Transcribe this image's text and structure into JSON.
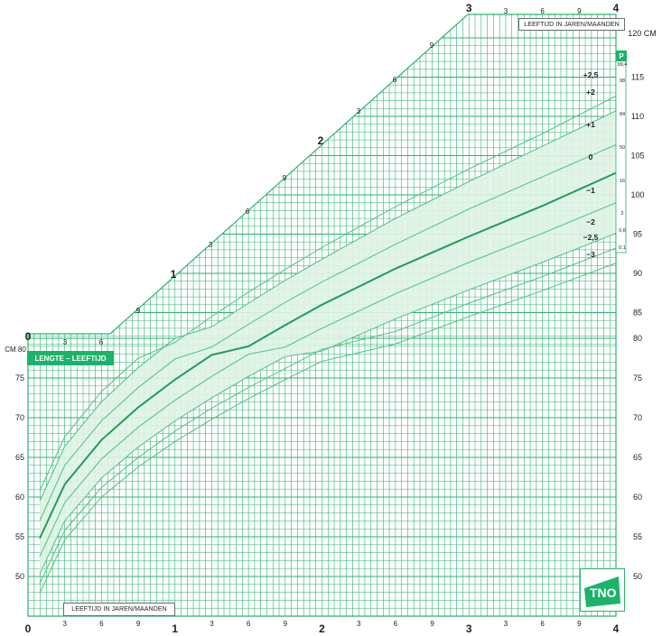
{
  "colors": {
    "grid": "#2bb36f",
    "band": "#dff3e6",
    "median": "#1f9d5a",
    "sd_line": "#58c588",
    "label": "#1f1f1f",
    "accent": "#1bb36a"
  },
  "chart": {
    "title": "LENGTE – LEEFTIJD",
    "age_box_top": "LEEFTIJD IN JAREN/MAANDEN",
    "age_box_bottom": "LEEFTIJD IN JAREN/MAANDEN",
    "p_label": "P",
    "left_unit_label": "CM 80",
    "right_unit_label": "120 CM",
    "logo_text": "TNO"
  },
  "chart_data": {
    "type": "line",
    "xlabel": "LEEFTIJD IN JAREN/MAANDEN",
    "ylabel": "CM",
    "x_range_years": [
      0,
      4
    ],
    "ylim_lower": [
      45,
      80
    ],
    "ylim_upper": [
      80,
      120
    ],
    "bottom_year_labels": [
      "0",
      "1",
      "2",
      "3",
      "4"
    ],
    "bottom_month_labels": [
      "3",
      "6",
      "9"
    ],
    "top_year_labels": [
      "3",
      "4"
    ],
    "diagonal_year_labels": [
      "0",
      "1",
      "2",
      "3"
    ],
    "diagonal_month_labels": [
      "3",
      "6",
      "9"
    ],
    "left_ticks": [
      "50",
      "55",
      "60",
      "65",
      "70",
      "75"
    ],
    "right_ticks": [
      "50",
      "55",
      "60",
      "65",
      "70",
      "75",
      "80",
      "85",
      "90",
      "95",
      "100",
      "105",
      "110",
      "115"
    ],
    "sd_labels": [
      "+2,5",
      "+2",
      "+1",
      "0",
      "−1",
      "−2",
      "−2,5",
      "−3"
    ],
    "percentiles": [
      "99,4",
      "98",
      "84",
      "50",
      "16",
      "2",
      "0,6",
      "0,1"
    ],
    "band": {
      "from_sd": "−2",
      "to_sd": "+2"
    },
    "series": [
      {
        "name": "+2,5",
        "x": [
          0.08,
          0.25,
          0.5,
          0.75,
          1.0,
          1.25,
          1.5,
          1.75,
          2.0,
          2.5,
          3.0,
          3.5,
          4.0
        ],
        "y": [
          60.8,
          67.6,
          73.3,
          77.5,
          81.2,
          84.5,
          87.6,
          90.5,
          93.3,
          98.5,
          103.3,
          107.8,
          112.6
        ]
      },
      {
        "name": "+2",
        "x": [
          0.08,
          0.25,
          0.5,
          0.75,
          1.0,
          1.25,
          1.5,
          1.75,
          2.0,
          2.5,
          3.0,
          3.5,
          4.0
        ],
        "y": [
          59.5,
          66.4,
          72.0,
          76.3,
          80.0,
          83.2,
          86.2,
          89.1,
          91.8,
          97.0,
          101.7,
          106.2,
          110.7
        ]
      },
      {
        "name": "+1",
        "x": [
          0.08,
          0.25,
          0.5,
          0.75,
          1.0,
          1.25,
          1.5,
          1.75,
          2.0,
          2.5,
          3.0,
          3.5,
          4.0
        ],
        "y": [
          57.0,
          64.0,
          69.6,
          73.8,
          77.4,
          80.6,
          83.5,
          86.3,
          88.9,
          93.7,
          98.2,
          102.3,
          106.4
        ]
      },
      {
        "name": "0",
        "x": [
          0.08,
          0.25,
          0.5,
          0.75,
          1.0,
          1.25,
          1.5,
          1.75,
          2.0,
          2.5,
          3.0,
          3.5,
          4.0
        ],
        "y": [
          54.8,
          61.6,
          67.2,
          71.3,
          74.8,
          77.9,
          80.7,
          83.4,
          86.0,
          90.6,
          94.7,
          98.6,
          102.8
        ]
      },
      {
        "name": "−1",
        "x": [
          0.08,
          0.25,
          0.5,
          0.75,
          1.0,
          1.25,
          1.5,
          1.75,
          2.0,
          2.5,
          3.0,
          3.5,
          4.0
        ],
        "y": [
          52.5,
          59.3,
          64.8,
          68.8,
          72.2,
          75.2,
          78.0,
          80.6,
          83.0,
          87.4,
          91.4,
          95.1,
          99.0
        ]
      },
      {
        "name": "−2",
        "x": [
          0.08,
          0.25,
          0.5,
          0.75,
          1.0,
          1.25,
          1.5,
          1.75,
          2.0,
          2.5,
          3.0,
          3.5,
          4.0
        ],
        "y": [
          50.3,
          57.0,
          62.4,
          66.3,
          69.6,
          72.5,
          75.2,
          77.7,
          80.1,
          84.2,
          87.9,
          91.4,
          95.1
        ]
      },
      {
        "name": "−2,5",
        "x": [
          0.08,
          0.25,
          0.5,
          0.75,
          1.0,
          1.25,
          1.5,
          1.75,
          2.0,
          2.5,
          3.0,
          3.5,
          4.0
        ],
        "y": [
          49.1,
          55.8,
          61.2,
          65.0,
          68.3,
          71.2,
          73.8,
          76.2,
          78.6,
          82.6,
          86.2,
          89.6,
          93.2
        ]
      },
      {
        "name": "−3",
        "x": [
          0.08,
          0.25,
          0.5,
          0.75,
          1.0,
          1.25,
          1.5,
          1.75,
          2.0,
          2.5,
          3.0,
          3.5,
          4.0
        ],
        "y": [
          47.9,
          54.6,
          60.0,
          63.8,
          67.0,
          69.8,
          72.4,
          74.8,
          77.1,
          81.0,
          84.5,
          87.8,
          91.3
        ]
      }
    ]
  }
}
